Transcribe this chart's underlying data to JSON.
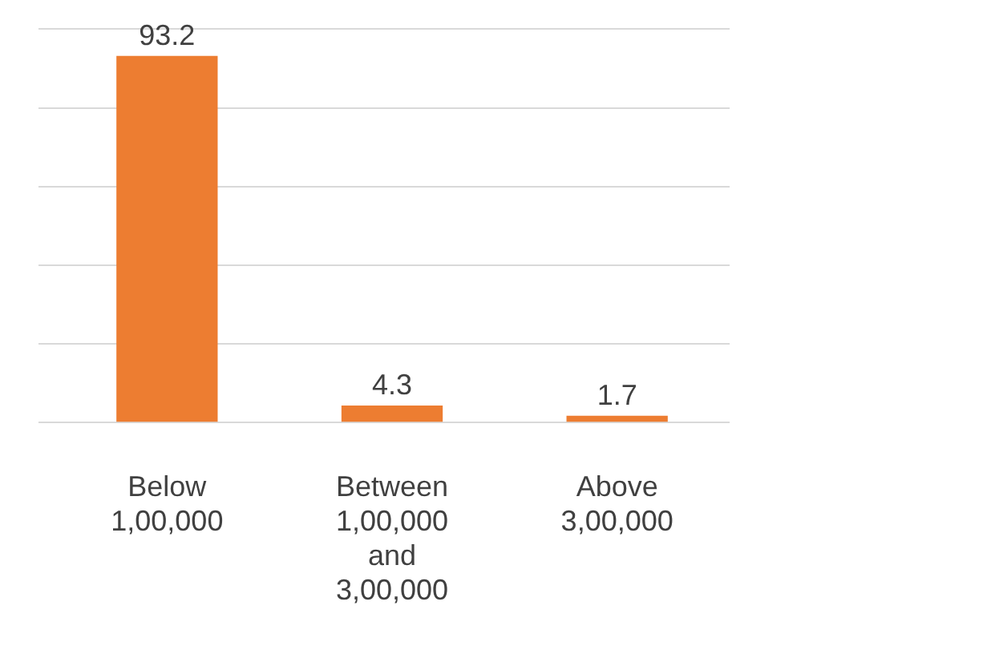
{
  "chart_data": {
    "type": "bar",
    "categories": [
      "Below 1,00,000",
      "Between 1,00,000 and 3,00,000",
      "Above 3,00,000"
    ],
    "values": [
      93.2,
      4.3,
      1.7
    ],
    "color": "#ed7d31",
    "ylim": [
      0,
      100
    ],
    "yticks": [
      {
        "value": 0,
        "label": null
      },
      {
        "value": 20,
        "label": null
      },
      {
        "value": 40,
        "label": null
      },
      {
        "value": 60,
        "label": null
      },
      {
        "value": 80,
        "label": null
      },
      {
        "value": 100,
        "label": null
      }
    ],
    "grid": "y",
    "legend": false,
    "data_labels": true
  }
}
